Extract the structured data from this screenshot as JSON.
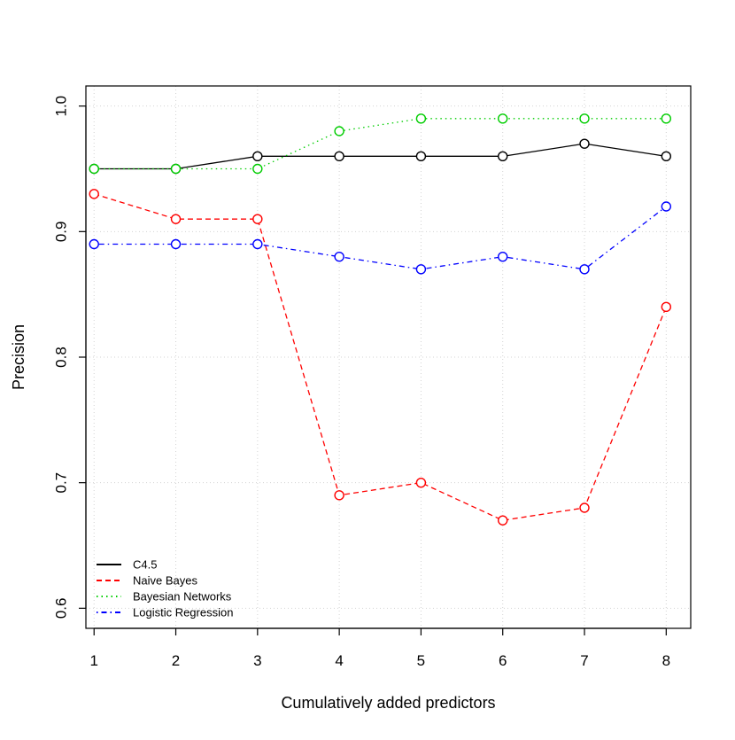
{
  "chart_data": {
    "type": "line",
    "title": "",
    "xlabel": "Cumulatively added predictors",
    "ylabel": "Precision",
    "x": [
      1,
      2,
      3,
      4,
      5,
      6,
      7,
      8
    ],
    "xlim": [
      0.9,
      8.3
    ],
    "ylim": [
      0.584,
      1.016
    ],
    "xticks": [
      "1",
      "2",
      "3",
      "4",
      "5",
      "6",
      "7",
      "8"
    ],
    "yticks": [
      "0.6",
      "0.7",
      "0.8",
      "0.9",
      "1.0"
    ],
    "grid": true,
    "legend_position": "bottom-left",
    "series": [
      {
        "name": "C4.5",
        "color": "#000000",
        "line_style": "solid",
        "values": [
          0.95,
          0.95,
          0.96,
          0.96,
          0.96,
          0.96,
          0.97,
          0.96
        ]
      },
      {
        "name": "Naive Bayes",
        "color": "#ff0000",
        "line_style": "dashed",
        "values": [
          0.93,
          0.91,
          0.91,
          0.69,
          0.7,
          0.67,
          0.68,
          0.84
        ]
      },
      {
        "name": "Bayesian Networks",
        "color": "#00cd00",
        "line_style": "dotted",
        "values": [
          0.95,
          0.95,
          0.95,
          0.98,
          0.99,
          0.99,
          0.99,
          0.99
        ]
      },
      {
        "name": "Logistic Regression",
        "color": "#0000ff",
        "line_style": "dotdash",
        "values": [
          0.89,
          0.89,
          0.89,
          0.88,
          0.87,
          0.88,
          0.87,
          0.92
        ]
      }
    ]
  }
}
